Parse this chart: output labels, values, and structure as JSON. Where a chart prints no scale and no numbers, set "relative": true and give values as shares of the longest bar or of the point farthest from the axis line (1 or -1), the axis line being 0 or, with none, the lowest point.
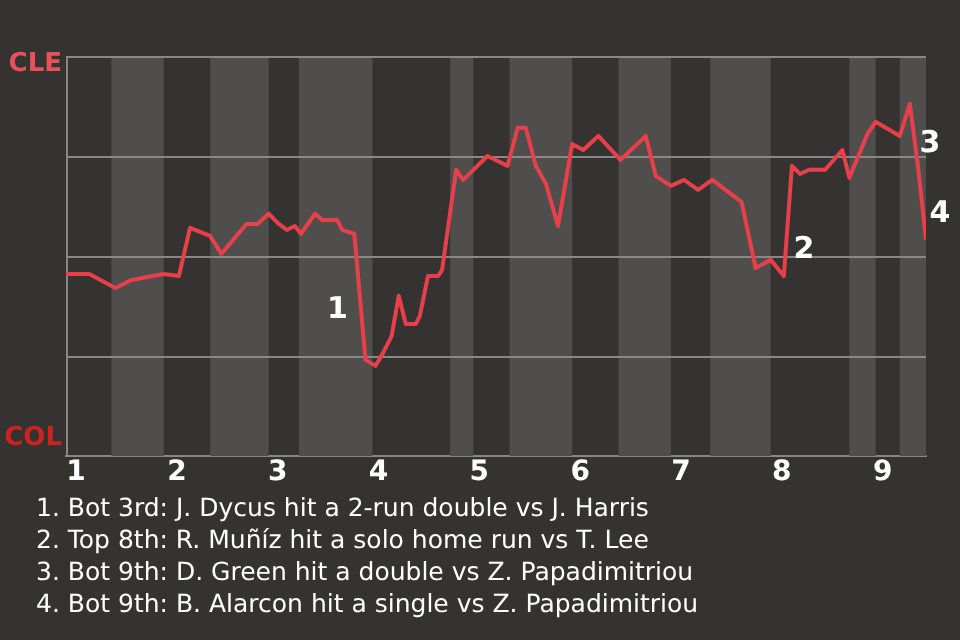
{
  "chart_data": {
    "type": "line",
    "relative": true,
    "x": [
      0.9,
      1.13,
      1.39,
      1.55,
      1.87,
      2.02,
      2.13,
      2.33,
      2.44,
      2.69,
      2.8,
      2.91,
      3.01,
      3.09,
      3.17,
      3.23,
      3.37,
      3.44,
      3.59,
      3.64,
      3.76,
      3.87,
      3.97,
      4.04,
      4.13,
      4.2,
      4.27,
      4.37,
      4.41,
      4.49,
      4.59,
      4.63,
      4.77,
      4.84,
      5.08,
      5.28,
      5.38,
      5.46,
      5.56,
      5.66,
      5.78,
      5.92,
      6.03,
      6.18,
      6.4,
      6.65,
      6.75,
      6.9,
      7.03,
      7.17,
      7.31,
      7.6,
      7.74,
      7.89,
      8.02,
      8.1,
      8.18,
      8.27,
      8.43,
      8.6,
      8.67,
      8.85,
      8.93,
      9.17,
      9.27,
      9.35,
      9.43
    ],
    "series": [
      {
        "color": "#e8404a",
        "values": [
          0.517,
          0.517,
          0.477,
          0.5,
          0.517,
          0.511,
          0.648,
          0.625,
          0.574,
          0.659,
          0.659,
          0.688,
          0.659,
          0.642,
          0.653,
          0.631,
          0.688,
          0.67,
          0.67,
          0.642,
          0.631,
          0.273,
          0.256,
          0.29,
          0.341,
          0.455,
          0.375,
          0.375,
          0.398,
          0.511,
          0.511,
          0.528,
          0.813,
          0.784,
          0.852,
          0.824,
          0.932,
          0.932,
          0.824,
          0.773,
          0.653,
          0.886,
          0.869,
          0.909,
          0.841,
          0.909,
          0.795,
          0.767,
          0.784,
          0.756,
          0.784,
          0.722,
          0.534,
          0.557,
          0.511,
          0.824,
          0.801,
          0.813,
          0.813,
          0.869,
          0.79,
          0.915,
          0.949,
          0.909,
          1,
          0.824,
          0.614
        ]
      }
    ],
    "xlim": [
      0.9,
      9.43
    ],
    "xticks": [
      1,
      2,
      3,
      4,
      5,
      6,
      7,
      8,
      9
    ],
    "legend": false,
    "marker": "none",
    "line_style": "solid",
    "ref_lines": [
      {
        "axis": "y",
        "value": 0.284,
        "color": "#8a8886"
      },
      {
        "axis": "y",
        "value": 0.568,
        "color": "#8a8886"
      },
      {
        "axis": "y",
        "value": 0.852,
        "color": "#8a8886"
      },
      {
        "axis": "y",
        "value": 1.136,
        "color": "#8a8886"
      }
    ],
    "bands": [
      {
        "axis": "x",
        "from": 1.35,
        "to": 1.87,
        "color": "#4f4e4c"
      },
      {
        "axis": "x",
        "from": 2.33,
        "to": 2.91,
        "color": "#4f4e4c"
      },
      {
        "axis": "x",
        "from": 3.21,
        "to": 3.94,
        "color": "#4f4e4c"
      },
      {
        "axis": "x",
        "from": 4.71,
        "to": 4.94,
        "color": "#4f4e4c"
      },
      {
        "axis": "x",
        "from": 5.3,
        "to": 5.92,
        "color": "#4f4e4c"
      },
      {
        "axis": "x",
        "from": 6.38,
        "to": 6.9,
        "color": "#4f4e4c"
      },
      {
        "axis": "x",
        "from": 7.29,
        "to": 7.89,
        "color": "#4f4e4c"
      },
      {
        "axis": "x",
        "from": 8.67,
        "to": 8.93,
        "color": "#4f4e4c"
      },
      {
        "axis": "x",
        "from": 9.17,
        "to": 9.43,
        "color": "#4f4e4c"
      }
    ],
    "annotations": [
      "CLE",
      "COL",
      {
        "text": "1",
        "x": 3.87,
        "y": 0.273
      },
      {
        "text": "2",
        "x": 8.02,
        "y": 0.511
      },
      {
        "text": "3",
        "x": 9.27,
        "y": 1
      },
      {
        "text": "4",
        "x": 9.43,
        "y": 0.614
      },
      "1. Bot 3rd: J. Dycus hit a 2-run double vs J. Harris",
      "2. Top 8th: R. Muñíz hit a solo home run vs T. Lee",
      "3. Bot 9th: D. Green hit a double vs Z. Papadimitriou",
      "4. Bot 9th: B. Alarcon hit a single vs Z. Papadimitriou"
    ]
  }
}
